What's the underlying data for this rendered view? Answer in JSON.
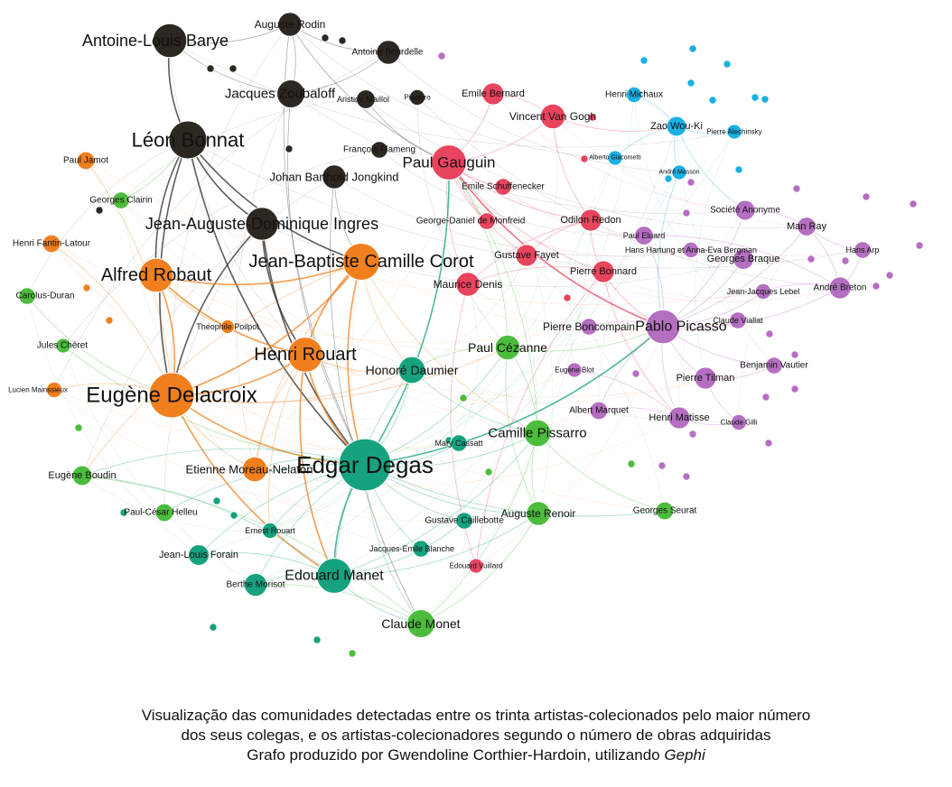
{
  "colors": {
    "black": "#2d2721",
    "orange": "#f07f1e",
    "green": "#4cbc3c",
    "teal": "#16a27e",
    "red": "#e8445e",
    "purple": "#b46fc1",
    "blue": "#1ab0e3"
  },
  "nodes": [
    {
      "id": "Antoine-Louis Barye",
      "label": "Antoine-Louis Barye",
      "group": "black",
      "size": 3
    },
    {
      "id": "Auguste Rodin",
      "label": "Auguste Rodin",
      "group": "black",
      "size": 2
    },
    {
      "id": "Antoine Bourdelle",
      "label": "Antoine Bourdelle",
      "group": "black",
      "size": 2
    },
    {
      "id": "Jacques Zoubaloff",
      "label": "Jacques Zoubaloff",
      "group": "black",
      "size": 2.4
    },
    {
      "id": "Aristide Maillol",
      "label": "Aristide Maillol",
      "group": "black",
      "size": 1.5
    },
    {
      "id": "Léon Bonnat",
      "label": "Léon Bonnat",
      "group": "black",
      "size": 3.4
    },
    {
      "id": "François Flameng",
      "label": "François Flameng",
      "group": "black",
      "size": 1.3
    },
    {
      "id": "Johan Barthold Jongkind",
      "label": "Johan Barthold Jongkind",
      "group": "black",
      "size": 2
    },
    {
      "id": "Jean-Auguste-Dominique Ingres",
      "label": "Jean-Auguste-Dominique Ingres",
      "group": "black",
      "size": 2.9
    },
    {
      "id": "Pissarro black",
      "label": "Pissarro",
      "group": "black",
      "size": 1.2
    },
    {
      "id": "Paul Jamot",
      "label": "Paul Jamot",
      "group": "orange",
      "size": 1.4
    },
    {
      "id": "Henri Fantin-Latour",
      "label": "Henri Fantin-Latour",
      "group": "orange",
      "size": 1.4
    },
    {
      "id": "Alfred Robaut",
      "label": "Alfred Robaut",
      "group": "orange",
      "size": 3
    },
    {
      "id": "Jean-Baptiste Camille Corot",
      "label": "Jean-Baptiste Camille Corot",
      "group": "orange",
      "size": 3.3
    },
    {
      "id": "Théophile Poilpot",
      "label": "Théophile Poilpot",
      "group": "orange",
      "size": 1
    },
    {
      "id": "Henri Rouart",
      "label": "Henri Rouart",
      "group": "orange",
      "size": 3.1
    },
    {
      "id": "Eugène Delacroix",
      "label": "Eugène Delacroix",
      "group": "orange",
      "size": 4.1
    },
    {
      "id": "Lucien Mainssieux",
      "label": "Lucien Mainssieux",
      "group": "orange",
      "size": 1.2
    },
    {
      "id": "Etienne Moreau-Nelaton",
      "label": "Etienne Moreau-Nelaton",
      "group": "orange",
      "size": 2.1
    },
    {
      "id": "Georges Clairin",
      "label": "Georges Clairin",
      "group": "green",
      "size": 1.3
    },
    {
      "id": "Carolus-Duran",
      "label": "Carolus-Duran",
      "group": "green",
      "size": 1.3
    },
    {
      "id": "Jules Chéret",
      "label": "Jules Chéret",
      "group": "green",
      "size": 1.1
    },
    {
      "id": "Eugène Boudin",
      "label": "Eugène Boudin",
      "group": "green",
      "size": 1.6
    },
    {
      "id": "Paul-César Helleu",
      "label": "Paul-César Helleu",
      "group": "green",
      "size": 1.4
    },
    {
      "id": "Paul Cézanne",
      "label": "Paul Cézanne",
      "group": "green",
      "size": 2.1
    },
    {
      "id": "Camille Pissarro",
      "label": "Camille Pissarro",
      "group": "green",
      "size": 2.3
    },
    {
      "id": "Auguste Renoir",
      "label": "Auguste Renoir",
      "group": "green",
      "size": 2
    },
    {
      "id": "Georges Seurat",
      "label": "Georges Seurat",
      "group": "green",
      "size": 1.4
    },
    {
      "id": "Claude Monet",
      "label": "Claude Monet",
      "group": "green",
      "size": 2.4
    },
    {
      "id": "Honoré Daumier",
      "label": "Honoré Daumier",
      "group": "teal",
      "size": 2.3
    },
    {
      "id": "Edgar Degas",
      "label": "Edgar Degas",
      "group": "teal",
      "size": 4.8
    },
    {
      "id": "Mary Cassatt",
      "label": "Mary Cassatt",
      "group": "teal",
      "size": 1.3
    },
    {
      "id": "Gustave Caillebotte",
      "label": "Gustave Caillebotte",
      "group": "teal",
      "size": 1.3
    },
    {
      "id": "Jacques-Emile Blanche",
      "label": "Jacques-Emile Blanche",
      "group": "teal",
      "size": 1.3
    },
    {
      "id": "Edouard Manet",
      "label": "Edouard Manet",
      "group": "teal",
      "size": 3.1
    },
    {
      "id": "Jean-Louis Forain",
      "label": "Jean-Louis Forain",
      "group": "teal",
      "size": 1.7
    },
    {
      "id": "Berthe Morisot",
      "label": "Berthe Morisot",
      "group": "teal",
      "size": 1.9
    },
    {
      "id": "Ernest Rouart",
      "label": "Ernest Rouart",
      "group": "teal",
      "size": 1.2
    },
    {
      "id": "Emile Bernard",
      "label": "Emile Bernard",
      "group": "red",
      "size": 1.8
    },
    {
      "id": "Vincent Van Gogh",
      "label": "Vincent Van Gogh",
      "group": "red",
      "size": 2.1
    },
    {
      "id": "Paul Gauguin",
      "label": "Paul Gauguin",
      "group": "red",
      "size": 3.1
    },
    {
      "id": "Emile Schuffenecker",
      "label": "Emile Schuffenecker",
      "group": "red",
      "size": 1.3
    },
    {
      "id": "George-Daniel de Monfreid",
      "label": "George-Daniel de Monfreid",
      "group": "red",
      "size": 1.3
    },
    {
      "id": "Odilon Redon",
      "label": "Odilon Redon",
      "group": "red",
      "size": 1.8
    },
    {
      "id": "Gustave Fayet",
      "label": "Gustave Fayet",
      "group": "red",
      "size": 1.8
    },
    {
      "id": "Pierre Bonnard",
      "label": "Pierre Bonnard",
      "group": "red",
      "size": 1.8
    },
    {
      "id": "Maurice Denis",
      "label": "Maurice Denis",
      "group": "red",
      "size": 2
    },
    {
      "id": "Edouard Vuillard",
      "label": "Edouard Vuillard",
      "group": "red",
      "size": 1.1
    },
    {
      "id": "Henri Michaux",
      "label": "Henri Michaux",
      "group": "blue",
      "size": 1.2
    },
    {
      "id": "Zao Wou-Ki",
      "label": "Zao Wou-Ki",
      "group": "blue",
      "size": 1.6
    },
    {
      "id": "Pierre Alechinsky",
      "label": "Pierre Alechinsky",
      "group": "blue",
      "size": 1.1
    },
    {
      "id": "Alberto Giacometti",
      "label": "Alberto Giacometti",
      "group": "blue",
      "size": 1.1
    },
    {
      "id": "André Masson",
      "label": "André Masson",
      "group": "blue",
      "size": 1.1
    },
    {
      "id": "Société Anonyme",
      "label": "Société Anonyme",
      "group": "purple",
      "size": 1.6
    },
    {
      "id": "Man Ray",
      "label": "Man Ray",
      "group": "purple",
      "size": 1.5
    },
    {
      "id": "Hans Arp",
      "label": "Hans Arp",
      "group": "purple",
      "size": 1.3
    },
    {
      "id": "Paul Eluard",
      "label": "Paul Eluard",
      "group": "purple",
      "size": 1.5
    },
    {
      "id": "Hans Hartung et Anna-Eva Bergman",
      "label": "Hans Hartung et Anna-Eva Bergman",
      "group": "purple",
      "size": 1.2
    },
    {
      "id": "Georges Braque",
      "label": "Georges Braque",
      "group": "purple",
      "size": 1.7
    },
    {
      "id": "André Breton",
      "label": "André Breton",
      "group": "purple",
      "size": 1.8
    },
    {
      "id": "Jean-Jacques Lebel",
      "label": "Jean-Jacques Lebel",
      "group": "purple",
      "size": 1.2
    },
    {
      "id": "Pierre Boncompain",
      "label": "Pierre Boncompain",
      "group": "purple",
      "size": 1.3
    },
    {
      "id": "Pablo Picasso",
      "label": "Pablo Picasso",
      "group": "purple",
      "size": 3
    },
    {
      "id": "Claude Viallat",
      "label": "Claude Viallat",
      "group": "purple",
      "size": 1.3
    },
    {
      "id": "Benjamin Vautier",
      "label": "Benjamin Vautier",
      "group": "purple",
      "size": 1.3
    },
    {
      "id": "Pierre Tilman",
      "label": "Pierre Tilman",
      "group": "purple",
      "size": 1.8
    },
    {
      "id": "Eugène Blot",
      "label": "Eugène Blot",
      "group": "purple",
      "size": 1.1
    },
    {
      "id": "Albert Marquet",
      "label": "Albert Marquet",
      "group": "purple",
      "size": 1.4
    },
    {
      "id": "Henri Matisse",
      "label": "Henri Matisse",
      "group": "purple",
      "size": 1.8
    },
    {
      "id": "Claude Gilli",
      "label": "Claude Gilli",
      "group": "purple",
      "size": 1.2
    }
  ],
  "edges": [
    [
      "Antoine-Louis Barye",
      "Léon Bonnat"
    ],
    [
      "Antoine-Louis Barye",
      "Auguste Rodin"
    ],
    [
      "Antoine-Louis Barye",
      "Jacques Zoubaloff"
    ],
    [
      "Léon Bonnat",
      "Jean-Auguste-Dominique Ingres"
    ],
    [
      "Léon Bonnat",
      "Eugène Delacroix"
    ],
    [
      "Léon Bonnat",
      "Alfred Robaut"
    ],
    [
      "Léon Bonnat",
      "Jean-Baptiste Camille Corot"
    ],
    [
      "Léon Bonnat",
      "Edgar Degas"
    ],
    [
      "Jean-Auguste-Dominique Ingres",
      "Edgar Degas"
    ],
    [
      "Jean-Auguste-Dominique Ingres",
      "Eugène Delacroix"
    ],
    [
      "Jean-Auguste-Dominique Ingres",
      "Henri Rouart"
    ],
    [
      "Jacques Zoubaloff",
      "Auguste Rodin"
    ],
    [
      "Jacques Zoubaloff",
      "Antoine Bourdelle"
    ],
    [
      "Jacques Zoubaloff",
      "Edgar Degas"
    ],
    [
      "Auguste Rodin",
      "Antoine Bourdelle"
    ],
    [
      "Auguste Rodin",
      "Edgar Degas"
    ],
    [
      "Auguste Rodin",
      "Paul Gauguin"
    ],
    [
      "Aristide Maillol",
      "Paul Gauguin"
    ],
    [
      "Johan Barthold Jongkind",
      "Jean-Baptiste Camille Corot"
    ],
    [
      "Johan Barthold Jongkind",
      "Claude Monet"
    ],
    [
      "Eugène Delacroix",
      "Alfred Robaut"
    ],
    [
      "Eugène Delacroix",
      "Jean-Baptiste Camille Corot"
    ],
    [
      "Eugène Delacroix",
      "Henri Rouart"
    ],
    [
      "Eugène Delacroix",
      "Edgar Degas"
    ],
    [
      "Eugène Delacroix",
      "Etienne Moreau-Nelaton"
    ],
    [
      "Eugène Delacroix",
      "Henri Fantin-Latour"
    ],
    [
      "Eugène Delacroix",
      "Paul Jamot"
    ],
    [
      "Eugène Delacroix",
      "Lucien Mainssieux"
    ],
    [
      "Eugène Delacroix",
      "Edouard Manet"
    ],
    [
      "Eugène Delacroix",
      "Paul Cézanne"
    ],
    [
      "Eugène Delacroix",
      "Honoré Daumier"
    ],
    [
      "Alfred Robaut",
      "Jean-Baptiste Camille Corot"
    ],
    [
      "Alfred Robaut",
      "Henri Rouart"
    ],
    [
      "Alfred Robaut",
      "Théophile Poilpot"
    ],
    [
      "Jean-Baptiste Camille Corot",
      "Henri Rouart"
    ],
    [
      "Jean-Baptiste Camille Corot",
      "Edgar Degas"
    ],
    [
      "Jean-Baptiste Camille Corot",
      "Etienne Moreau-Nelaton"
    ],
    [
      "Jean-Baptiste Camille Corot",
      "Honoré Daumier"
    ],
    [
      "Jean-Baptiste Camille Corot",
      "Camille Pissarro"
    ],
    [
      "Jean-Baptiste Camille Corot",
      "Eugène Boudin"
    ],
    [
      "Henri Rouart",
      "Edgar Degas"
    ],
    [
      "Henri Rouart",
      "Honoré Daumier"
    ],
    [
      "Henri Rouart",
      "Etienne Moreau-Nelaton"
    ],
    [
      "Henri Rouart",
      "Edouard Manet"
    ],
    [
      "Henri Rouart",
      "Ernest Rouart"
    ],
    [
      "Edgar Degas",
      "Edouard Manet"
    ],
    [
      "Edgar Degas",
      "Honoré Daumier"
    ],
    [
      "Edgar Degas",
      "Mary Cassatt"
    ],
    [
      "Edgar Degas",
      "Camille Pissarro"
    ],
    [
      "Edgar Degas",
      "Paul Cézanne"
    ],
    [
      "Edgar Degas",
      "Auguste Renoir"
    ],
    [
      "Edgar Degas",
      "Claude Monet"
    ],
    [
      "Edgar Degas",
      "Berthe Morisot"
    ],
    [
      "Edgar Degas",
      "Jean-Louis Forain"
    ],
    [
      "Edgar Degas",
      "Gustave Caillebotte"
    ],
    [
      "Edgar Degas",
      "Jacques-Emile Blanche"
    ],
    [
      "Edgar Degas",
      "Paul Gauguin"
    ],
    [
      "Edgar Degas",
      "Ernest Rouart"
    ],
    [
      "Edgar Degas",
      "Etienne Moreau-Nelaton"
    ],
    [
      "Edgar Degas",
      "Eugène Boudin"
    ],
    [
      "Edgar Degas",
      "Paul-César Helleu"
    ],
    [
      "Edgar Degas",
      "Georges Seurat"
    ],
    [
      "Edgar Degas",
      "Pablo Picasso"
    ],
    [
      "Edouard Manet",
      "Claude Monet"
    ],
    [
      "Edouard Manet",
      "Berthe Morisot"
    ],
    [
      "Edouard Manet",
      "Auguste Renoir"
    ],
    [
      "Edouard Manet",
      "Camille Pissarro"
    ],
    [
      "Edouard Manet",
      "Jean-Louis Forain"
    ],
    [
      "Edouard Manet",
      "Gustave Caillebotte"
    ],
    [
      "Edouard Manet",
      "Eugène Boudin"
    ],
    [
      "Claude Monet",
      "Auguste Renoir"
    ],
    [
      "Claude Monet",
      "Camille Pissarro"
    ],
    [
      "Claude Monet",
      "Berthe Morisot"
    ],
    [
      "Claude Monet",
      "Eugène Boudin"
    ],
    [
      "Camille Pissarro",
      "Paul Cézanne"
    ],
    [
      "Camille Pissarro",
      "Auguste Renoir"
    ],
    [
      "Camille Pissarro",
      "Georges Seurat"
    ],
    [
      "Camille Pissarro",
      "Paul Gauguin"
    ],
    [
      "Paul Cézanne",
      "Auguste Renoir"
    ],
    [
      "Paul Cézanne",
      "Paul Gauguin"
    ],
    [
      "Paul Cézanne",
      "Pablo Picasso"
    ],
    [
      "Paul Cézanne",
      "Honoré Daumier"
    ],
    [
      "Paul Gauguin",
      "Vincent Van Gogh"
    ],
    [
      "Paul Gauguin",
      "Emile Bernard"
    ],
    [
      "Paul Gauguin",
      "Emile Schuffenecker"
    ],
    [
      "Paul Gauguin",
      "George-Daniel de Monfreid"
    ],
    [
      "Paul Gauguin",
      "Odilon Redon"
    ],
    [
      "Paul Gauguin",
      "Gustave Fayet"
    ],
    [
      "Paul Gauguin",
      "Maurice Denis"
    ],
    [
      "Paul Gauguin",
      "Pierre Bonnard"
    ],
    [
      "Paul Gauguin",
      "Pablo Picasso"
    ],
    [
      "Vincent Van Gogh",
      "Emile Bernard"
    ],
    [
      "Vincent Van Gogh",
      "Odilon Redon"
    ],
    [
      "Vincent Van Gogh",
      "Zao Wou-Ki"
    ],
    [
      "Odilon Redon",
      "Pierre Bonnard"
    ],
    [
      "Odilon Redon",
      "Gustave Fayet"
    ],
    [
      "Odilon Redon",
      "Maurice Denis"
    ],
    [
      "Pierre Bonnard",
      "Maurice Denis"
    ],
    [
      "Pierre Bonnard",
      "Pablo Picasso"
    ],
    [
      "Pierre Bonnard",
      "Henri Matisse"
    ],
    [
      "Pierre Bonnard",
      "Edouard Vuillard"
    ],
    [
      "Maurice Denis",
      "Edouard Vuillard"
    ],
    [
      "Zao Wou-Ki",
      "Henri Michaux"
    ],
    [
      "Zao Wou-Ki",
      "Pierre Alechinsky"
    ],
    [
      "Zao Wou-Ki",
      "André Masson"
    ],
    [
      "Zao Wou-Ki",
      "Alberto Giacometti"
    ],
    [
      "Zao Wou-Ki",
      "Société Anonyme"
    ],
    [
      "André Masson",
      "Pablo Picasso"
    ],
    [
      "Pablo Picasso",
      "Georges Braque"
    ],
    [
      "Pablo Picasso",
      "Henri Matisse"
    ],
    [
      "Pablo Picasso",
      "André Breton"
    ],
    [
      "Pablo Picasso",
      "Man Ray"
    ],
    [
      "Pablo Picasso",
      "Paul Eluard"
    ],
    [
      "Pablo Picasso",
      "Pierre Tilman"
    ],
    [
      "Pablo Picasso",
      "Benjamin Vautier"
    ],
    [
      "Pablo Picasso",
      "Claude Viallat"
    ],
    [
      "Pablo Picasso",
      "Pierre Boncompain"
    ],
    [
      "Pablo Picasso",
      "Albert Marquet"
    ],
    [
      "Pablo Picasso",
      "Jean-Jacques Lebel"
    ],
    [
      "Pablo Picasso",
      "Société Anonyme"
    ],
    [
      "André Breton",
      "Man Ray"
    ],
    [
      "André Breton",
      "Hans Arp"
    ],
    [
      "André Breton",
      "Paul Eluard"
    ],
    [
      "André Breton",
      "Jean-Jacques Lebel"
    ],
    [
      "Man Ray",
      "Société Anonyme"
    ],
    [
      "Man Ray",
      "Hans Arp"
    ],
    [
      "Georges Braque",
      "Hans Hartung et Anna-Eva Bergman"
    ],
    [
      "Henri Matisse",
      "Albert Marquet"
    ],
    [
      "Henri Matisse",
      "Eugène Blot"
    ],
    [
      "Henri Matisse",
      "Claude Gilli"
    ],
    [
      "Pierre Tilman",
      "Benjamin Vautier"
    ],
    [
      "Pierre Tilman",
      "Claude Gilli"
    ],
    [
      "Honoré Daumier",
      "Edouard Manet"
    ],
    [
      "Honoré Daumier",
      "Camille Pissarro"
    ],
    [
      "Jules Chéret",
      "Edgar Degas"
    ],
    [
      "Carolus-Duran",
      "Eugène Delacroix"
    ],
    [
      "Georges Clairin",
      "Léon Bonnat"
    ]
  ],
  "caption": {
    "line1": "Visualização das comunidades detectadas entre os trinta artistas-colecionados pelo maior número",
    "line2": "dos seus colegas, e os artistas-colecionadores segundo o número de obras adquiridas",
    "line3_prefix": "Grafo produzido por Gwendoline Corthier-Hardoin, utilizando ",
    "line3_tool": "Gephi"
  }
}
